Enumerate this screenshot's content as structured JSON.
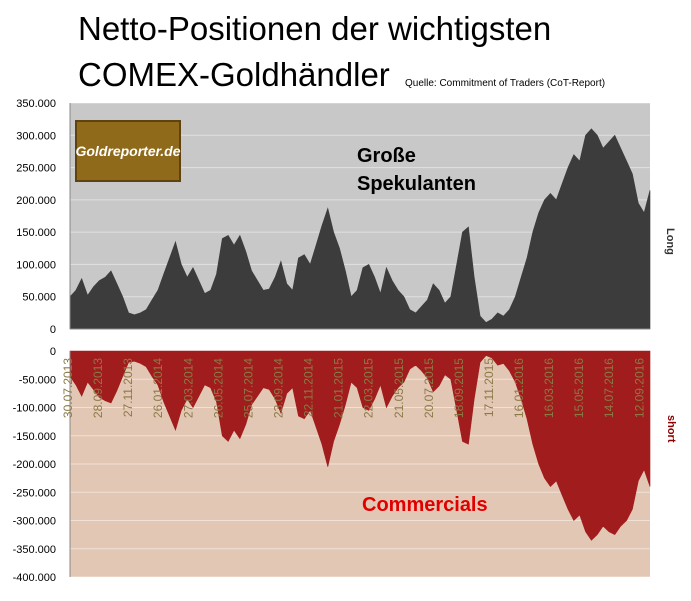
{
  "header": {
    "title_line1": "Netto-Positionen der wichtigsten",
    "title_line2": "COMEX-Goldhändler",
    "source": "Quelle: Commitment of Traders (CoT-Report)"
  },
  "logo": {
    "text": "Goldreporter.de"
  },
  "labels": {
    "speculators_line1": "Große",
    "speculators_line2": "Spekulanten",
    "commercials": "Commercials",
    "long": "Long",
    "short": "short"
  },
  "colors": {
    "speculators": "#3c3c3c",
    "commercials": "#a11c1c",
    "top_bg": "#c8c8c8",
    "bottom_bg": "#e3c7b5",
    "date_labels": "#8a7a46"
  },
  "chart_data": [
    {
      "type": "area",
      "series": [
        {
          "name": "Große Spekulanten",
          "values": [
            50000,
            60000,
            78000,
            52000,
            65000,
            75000,
            80000,
            90000,
            70000,
            50000,
            25000,
            22000,
            25000,
            30000,
            45000,
            60000,
            85000,
            110000,
            135000,
            100000,
            80000,
            95000,
            75000,
            55000,
            60000,
            85000,
            140000,
            145000,
            130000,
            145000,
            120000,
            90000,
            75000,
            60000,
            62000,
            80000,
            105000,
            70000,
            60000,
            110000,
            115000,
            100000,
            130000,
            160000,
            187000,
            150000,
            125000,
            90000,
            50000,
            60000,
            95000,
            100000,
            80000,
            55000,
            95000,
            75000,
            60000,
            50000,
            30000,
            25000,
            35000,
            45000,
            70000,
            60000,
            40000,
            50000,
            100000,
            150000,
            158000,
            80000,
            20000,
            10000,
            15000,
            25000,
            20000,
            30000,
            50000,
            80000,
            110000,
            150000,
            180000,
            200000,
            210000,
            200000,
            225000,
            250000,
            270000,
            260000,
            300000,
            310000,
            300000,
            280000,
            290000,
            300000,
            280000,
            260000,
            240000,
            195000,
            180000,
            215000
          ]
        }
      ],
      "ylim": [
        0,
        350000
      ],
      "yticks": [
        "350.000",
        "300.000",
        "250.000",
        "200.000",
        "150.000",
        "100.000",
        "50.000",
        "0"
      ]
    },
    {
      "type": "area",
      "series": [
        {
          "name": "Commercials",
          "values": [
            -45000,
            -60000,
            -80000,
            -55000,
            -68000,
            -82000,
            -88000,
            -92000,
            -70000,
            -45000,
            -20000,
            -18000,
            -22000,
            -28000,
            -45000,
            -60000,
            -90000,
            -115000,
            -140000,
            -105000,
            -85000,
            -100000,
            -80000,
            -60000,
            -65000,
            -90000,
            -150000,
            -160000,
            -140000,
            -155000,
            -130000,
            -95000,
            -80000,
            -65000,
            -68000,
            -85000,
            -110000,
            -75000,
            -65000,
            -115000,
            -120000,
            -105000,
            -135000,
            -165000,
            -205000,
            -160000,
            -130000,
            -95000,
            -55000,
            -65000,
            -100000,
            -105000,
            -85000,
            -60000,
            -100000,
            -80000,
            -65000,
            -55000,
            -32000,
            -25000,
            -35000,
            -48000,
            -72000,
            -62000,
            -42000,
            -50000,
            -105000,
            -160000,
            -165000,
            -85000,
            -20000,
            -8000,
            -12000,
            -25000,
            -22000,
            -35000,
            -55000,
            -85000,
            -120000,
            -165000,
            -200000,
            -225000,
            -240000,
            -230000,
            -255000,
            -280000,
            -300000,
            -290000,
            -320000,
            -335000,
            -325000,
            -310000,
            -320000,
            -325000,
            -310000,
            -300000,
            -280000,
            -230000,
            -210000,
            -240000
          ]
        }
      ],
      "ylim": [
        -400000,
        0
      ],
      "yticks": [
        "0",
        "-50.000",
        "-100.000",
        "-150.000",
        "-200.000",
        "-250.000",
        "-300.000",
        "-350.000",
        "-400.000"
      ],
      "x_tick_labels": [
        "30.07.2013",
        "28.09.2013",
        "27.11.2013",
        "26.01.2014",
        "27.03.2014",
        "26.05.2014",
        "25.07.2014",
        "23.09.2014",
        "22.11.2014",
        "21.01.2015",
        "22.03.2015",
        "21.05.2015",
        "20.07.2015",
        "18.09.2015",
        "17.11.2015",
        "16.01.2016",
        "16.03.2016",
        "15.05.2016",
        "14.07.2016",
        "12.09.2016"
      ]
    }
  ]
}
